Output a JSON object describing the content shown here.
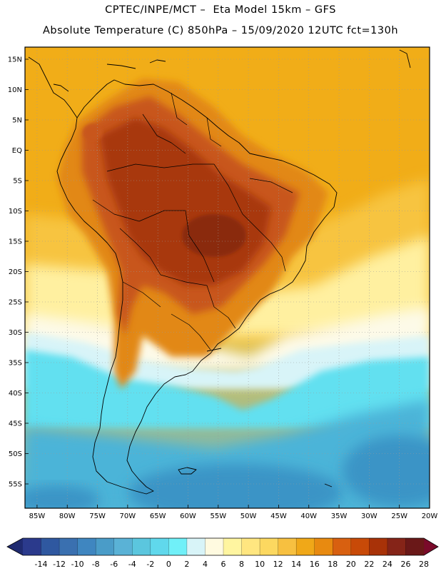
{
  "header": {
    "line1": "CPTEC/INPE/MCT –  Eta Model 15km – GFS",
    "line2": "Absolute Temperature (C) 850hPa – 15/09/2020 12UTC fct=130h"
  },
  "axes": {
    "lat_labels": [
      "15N",
      "10N",
      "5N",
      "EQ",
      "5S",
      "10S",
      "15S",
      "20S",
      "25S",
      "30S",
      "35S",
      "40S",
      "45S",
      "50S",
      "55S"
    ],
    "lon_labels": [
      "85W",
      "80W",
      "75W",
      "70W",
      "65W",
      "60W",
      "55W",
      "50W",
      "45W",
      "40W",
      "35W",
      "30W",
      "25W",
      "20W"
    ]
  },
  "colorbar": {
    "ticks": [
      "-14",
      "-12",
      "-10",
      "-8",
      "-6",
      "-4",
      "-2",
      "0",
      "2",
      "4",
      "6",
      "8",
      "10",
      "12",
      "14",
      "16",
      "18",
      "20",
      "22",
      "24",
      "26",
      "28"
    ],
    "colors": [
      "#2b3a8c",
      "#2f58a0",
      "#3a70b0",
      "#3f86c0",
      "#4a9cc8",
      "#5ab2d6",
      "#5bc6de",
      "#60d8ec",
      "#70f0f8",
      "#d8f4f8",
      "#fffae0",
      "#fff5a0",
      "#ffe680",
      "#fcd860",
      "#f7c040",
      "#f0a818",
      "#e88a10",
      "#d86010",
      "#c84a08",
      "#a83208",
      "#852418",
      "#6a1818"
    ],
    "low_arrow_color": "#1f2a70",
    "high_arrow_color": "#7a0a2a"
  },
  "map_colors": {
    "ocean_warm": "#f1ad18",
    "ocean_mid": "#f7c440",
    "ocean_light": "#fff0a0",
    "pale": "#fdfae8",
    "light_cyan": "#d8f4f8",
    "cyan": "#62e0f0",
    "blue_mid": "#4cb4d8",
    "blue_deep": "#3a94c6",
    "land_warm": "#e28818",
    "land_hot": "#c8561a",
    "land_hotter": "#a8380e",
    "land_hottest": "#8a2a10",
    "coast": "#000000"
  }
}
